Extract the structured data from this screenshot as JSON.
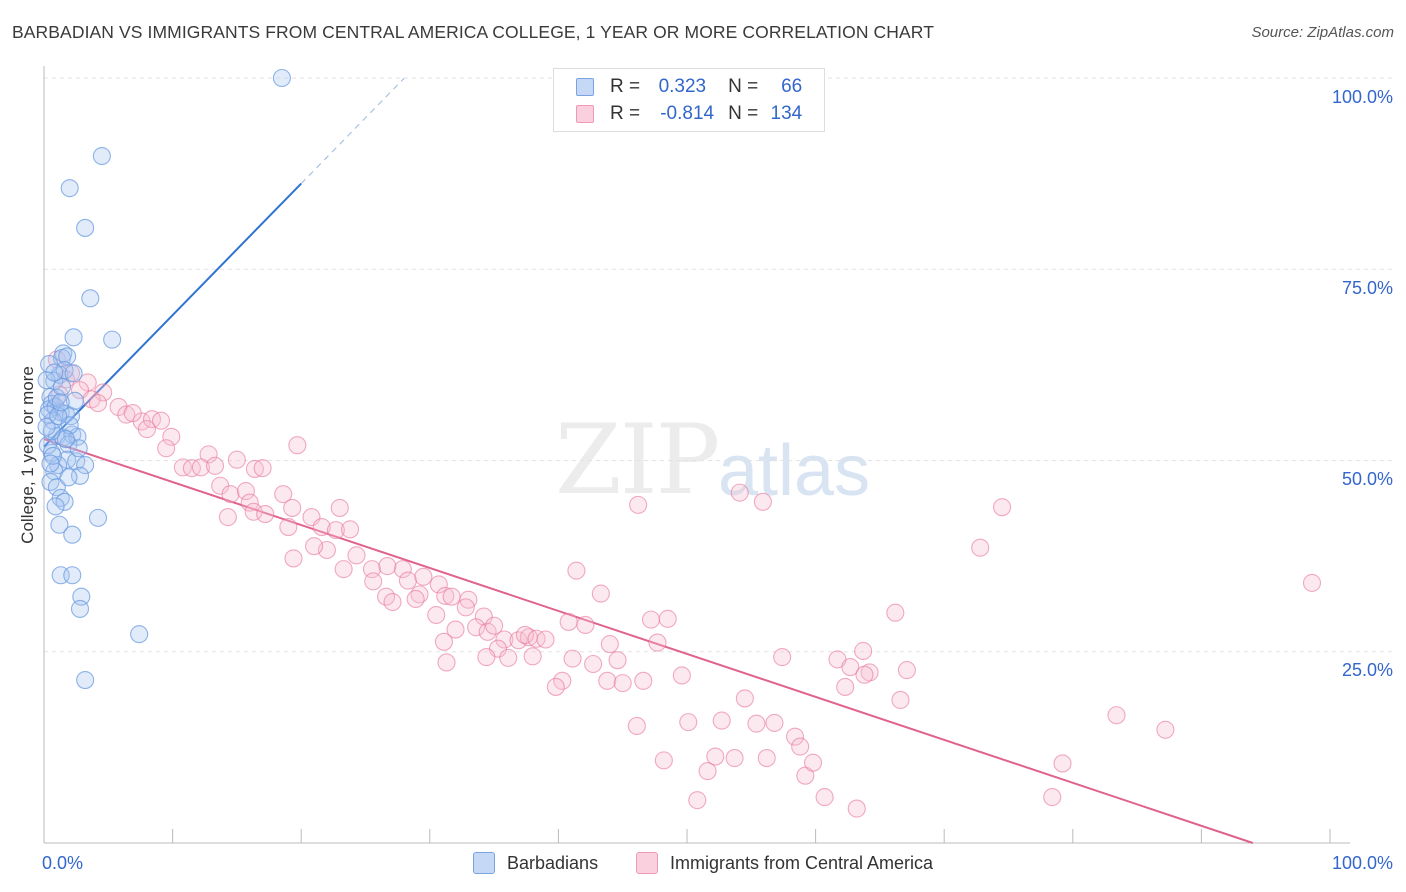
{
  "title": "BARBADIAN VS IMMIGRANTS FROM CENTRAL AMERICA COLLEGE, 1 YEAR OR MORE CORRELATION CHART",
  "source": "Source: ZipAtlas.com",
  "watermark": {
    "zip": "ZIP",
    "atlas": "atlas"
  },
  "legend_top": [
    {
      "r_label": "R =",
      "r_value": "0.323",
      "n_label": "N =",
      "n_value": "66",
      "color": "#9dbdf0"
    },
    {
      "r_label": "R =",
      "r_value": "-0.814",
      "n_label": "N =",
      "n_value": "134",
      "color": "#f7b3c8"
    }
  ],
  "bottom_legend": [
    "Barbadians",
    "Immigrants from Central America"
  ],
  "chart_data": {
    "type": "scatter",
    "title": "BARBADIAN VS IMMIGRANTS FROM CENTRAL AMERICA COLLEGE, 1 YEAR OR MORE CORRELATION CHART",
    "xlabel": "",
    "ylabel": "College, 1 year or more",
    "x_tick_labels": [
      "0.0%",
      "100.0%"
    ],
    "y_tick_labels": [
      "100.0%",
      "75.0%",
      "50.0%",
      "25.0%"
    ],
    "xlim": [
      0,
      100
    ],
    "ylim": [
      0,
      100
    ],
    "grid": true,
    "legend_placement": "bottom",
    "series": [
      {
        "name": "Barbadians",
        "color": "#6a9be0",
        "fill": "#a9c6f2",
        "r": 0.323,
        "n": 66,
        "trend": {
          "x0": 0.0,
          "y0": 51.8,
          "x1": 20.0,
          "y1": 86.2,
          "dash_to_x": 28.0
        },
        "points": [
          [
            18.5,
            100
          ],
          [
            4.5,
            89.8
          ],
          [
            2.0,
            85.6
          ],
          [
            3.2,
            80.4
          ],
          [
            3.6,
            71.2
          ],
          [
            2.3,
            66.1
          ],
          [
            5.3,
            65.8
          ],
          [
            1.5,
            64.0
          ],
          [
            1.4,
            63.4
          ],
          [
            1.8,
            63.6
          ],
          [
            1.2,
            61.2
          ],
          [
            0.8,
            60.4
          ],
          [
            1.6,
            61.8
          ],
          [
            0.5,
            58.3
          ],
          [
            0.6,
            57.4
          ],
          [
            0.4,
            56.7
          ],
          [
            0.9,
            57.0
          ],
          [
            1.3,
            56.3
          ],
          [
            1.7,
            56.1
          ],
          [
            2.1,
            55.8
          ],
          [
            0.7,
            55.2
          ],
          [
            2.4,
            57.8
          ],
          [
            1.0,
            53.2
          ],
          [
            1.5,
            53.0
          ],
          [
            2.2,
            53.4
          ],
          [
            2.6,
            53.1
          ],
          [
            0.6,
            51.0
          ],
          [
            1.9,
            52.1
          ],
          [
            0.3,
            52.0
          ],
          [
            1.8,
            50.1
          ],
          [
            2.5,
            49.9
          ],
          [
            1.1,
            49.4
          ],
          [
            3.2,
            49.4
          ],
          [
            0.8,
            48.6
          ],
          [
            2.8,
            48.0
          ],
          [
            0.5,
            47.2
          ],
          [
            1.0,
            46.5
          ],
          [
            1.3,
            45.1
          ],
          [
            1.6,
            44.6
          ],
          [
            0.9,
            44.0
          ],
          [
            4.2,
            42.5
          ],
          [
            1.2,
            41.6
          ],
          [
            2.2,
            40.3
          ],
          [
            1.3,
            35.0
          ],
          [
            2.2,
            35.0
          ],
          [
            2.9,
            32.2
          ],
          [
            2.8,
            30.6
          ],
          [
            7.4,
            27.3
          ],
          [
            3.2,
            21.3
          ],
          [
            0.2,
            60.5
          ],
          [
            0.3,
            56.0
          ],
          [
            0.6,
            53.8
          ],
          [
            1.0,
            58.2
          ],
          [
            1.4,
            59.6
          ],
          [
            2.0,
            54.6
          ],
          [
            0.4,
            62.6
          ],
          [
            0.7,
            50.6
          ],
          [
            1.9,
            47.8
          ],
          [
            2.7,
            51.6
          ],
          [
            0.2,
            54.4
          ],
          [
            1.1,
            55.8
          ],
          [
            0.8,
            61.5
          ],
          [
            2.3,
            61.4
          ],
          [
            1.7,
            52.8
          ],
          [
            0.5,
            49.6
          ],
          [
            1.3,
            57.6
          ]
        ]
      },
      {
        "name": "Immigrants from Central America",
        "color": "#e8749a",
        "fill": "#f7c0d2",
        "r": -0.814,
        "n": 134,
        "trend": {
          "x0": 0.0,
          "y0": 52.8,
          "x1": 94.0,
          "y1": 0.0
        },
        "points": [
          [
            1.0,
            63.2
          ],
          [
            2.1,
            61.4
          ],
          [
            3.4,
            60.2
          ],
          [
            1.7,
            60.6
          ],
          [
            2.8,
            59.2
          ],
          [
            1.2,
            58.6
          ],
          [
            4.6,
            58.9
          ],
          [
            3.7,
            58.0
          ],
          [
            4.2,
            57.5
          ],
          [
            5.8,
            57.0
          ],
          [
            6.4,
            56.0
          ],
          [
            7.6,
            55.1
          ],
          [
            8.4,
            55.4
          ],
          [
            9.1,
            55.2
          ],
          [
            8.0,
            54.1
          ],
          [
            6.9,
            56.2
          ],
          [
            9.9,
            53.1
          ],
          [
            9.5,
            51.6
          ],
          [
            12.8,
            50.8
          ],
          [
            10.8,
            49.1
          ],
          [
            11.5,
            49.0
          ],
          [
            12.2,
            49.1
          ],
          [
            13.3,
            49.3
          ],
          [
            16.4,
            48.9
          ],
          [
            17.0,
            49.0
          ],
          [
            19.7,
            52.0
          ],
          [
            13.7,
            46.7
          ],
          [
            14.5,
            45.6
          ],
          [
            15.7,
            46.0
          ],
          [
            18.6,
            45.6
          ],
          [
            16.0,
            44.5
          ],
          [
            16.3,
            43.3
          ],
          [
            17.2,
            43.0
          ],
          [
            14.3,
            42.6
          ],
          [
            19.3,
            43.8
          ],
          [
            20.8,
            42.6
          ],
          [
            19.0,
            41.3
          ],
          [
            21.6,
            41.3
          ],
          [
            22.7,
            40.9
          ],
          [
            23.0,
            43.8
          ],
          [
            23.8,
            41.0
          ],
          [
            22.0,
            38.3
          ],
          [
            24.3,
            37.6
          ],
          [
            19.4,
            37.2
          ],
          [
            23.3,
            35.8
          ],
          [
            25.5,
            35.8
          ],
          [
            27.9,
            35.8
          ],
          [
            26.7,
            36.2
          ],
          [
            25.6,
            34.2
          ],
          [
            28.3,
            34.3
          ],
          [
            30.7,
            33.8
          ],
          [
            31.2,
            32.3
          ],
          [
            29.2,
            32.5
          ],
          [
            28.9,
            31.9
          ],
          [
            26.6,
            32.2
          ],
          [
            31.7,
            32.2
          ],
          [
            33.0,
            31.8
          ],
          [
            32.8,
            30.8
          ],
          [
            30.5,
            29.8
          ],
          [
            34.2,
            29.6
          ],
          [
            33.6,
            28.2
          ],
          [
            32.0,
            27.9
          ],
          [
            31.1,
            26.3
          ],
          [
            34.5,
            27.6
          ],
          [
            35.8,
            26.6
          ],
          [
            36.9,
            26.5
          ],
          [
            37.7,
            26.9
          ],
          [
            35.3,
            25.4
          ],
          [
            34.4,
            24.3
          ],
          [
            36.1,
            24.2
          ],
          [
            37.4,
            27.2
          ],
          [
            38.3,
            26.7
          ],
          [
            39.0,
            26.6
          ],
          [
            31.3,
            23.6
          ],
          [
            40.8,
            28.9
          ],
          [
            41.4,
            35.6
          ],
          [
            43.3,
            32.6
          ],
          [
            42.1,
            28.5
          ],
          [
            44.0,
            26.0
          ],
          [
            44.6,
            23.9
          ],
          [
            41.1,
            24.1
          ],
          [
            40.3,
            21.2
          ],
          [
            42.7,
            23.4
          ],
          [
            43.8,
            21.2
          ],
          [
            45.0,
            20.9
          ],
          [
            46.6,
            21.2
          ],
          [
            39.8,
            20.4
          ],
          [
            47.2,
            29.2
          ],
          [
            48.5,
            29.3
          ],
          [
            47.7,
            26.2
          ],
          [
            49.6,
            21.9
          ],
          [
            46.1,
            15.3
          ],
          [
            48.2,
            10.8
          ],
          [
            50.1,
            15.8
          ],
          [
            50.8,
            5.6
          ],
          [
            51.6,
            9.4
          ],
          [
            52.2,
            11.3
          ],
          [
            52.7,
            16.0
          ],
          [
            53.7,
            11.1
          ],
          [
            54.5,
            18.9
          ],
          [
            55.4,
            15.6
          ],
          [
            56.2,
            11.1
          ],
          [
            56.8,
            15.7
          ],
          [
            57.4,
            24.3
          ],
          [
            58.4,
            13.9
          ],
          [
            58.8,
            12.6
          ],
          [
            59.2,
            8.8
          ],
          [
            59.8,
            10.5
          ],
          [
            60.7,
            6.0
          ],
          [
            61.7,
            24.0
          ],
          [
            62.3,
            20.4
          ],
          [
            62.7,
            23.0
          ],
          [
            63.7,
            25.1
          ],
          [
            64.2,
            22.3
          ],
          [
            63.2,
            4.5
          ],
          [
            66.2,
            30.1
          ],
          [
            66.6,
            18.7
          ],
          [
            67.1,
            22.6
          ],
          [
            72.8,
            38.6
          ],
          [
            74.5,
            43.9
          ],
          [
            78.4,
            6.0
          ],
          [
            79.2,
            10.4
          ],
          [
            83.4,
            16.7
          ],
          [
            87.2,
            14.8
          ],
          [
            98.6,
            34.0
          ],
          [
            46.2,
            44.2
          ],
          [
            54.1,
            45.8
          ],
          [
            55.9,
            44.6
          ],
          [
            63.8,
            22.0
          ],
          [
            35.0,
            28.4
          ],
          [
            38.0,
            24.4
          ],
          [
            29.5,
            34.8
          ],
          [
            21.0,
            38.8
          ],
          [
            27.1,
            31.5
          ],
          [
            15.0,
            50.1
          ]
        ]
      }
    ]
  }
}
